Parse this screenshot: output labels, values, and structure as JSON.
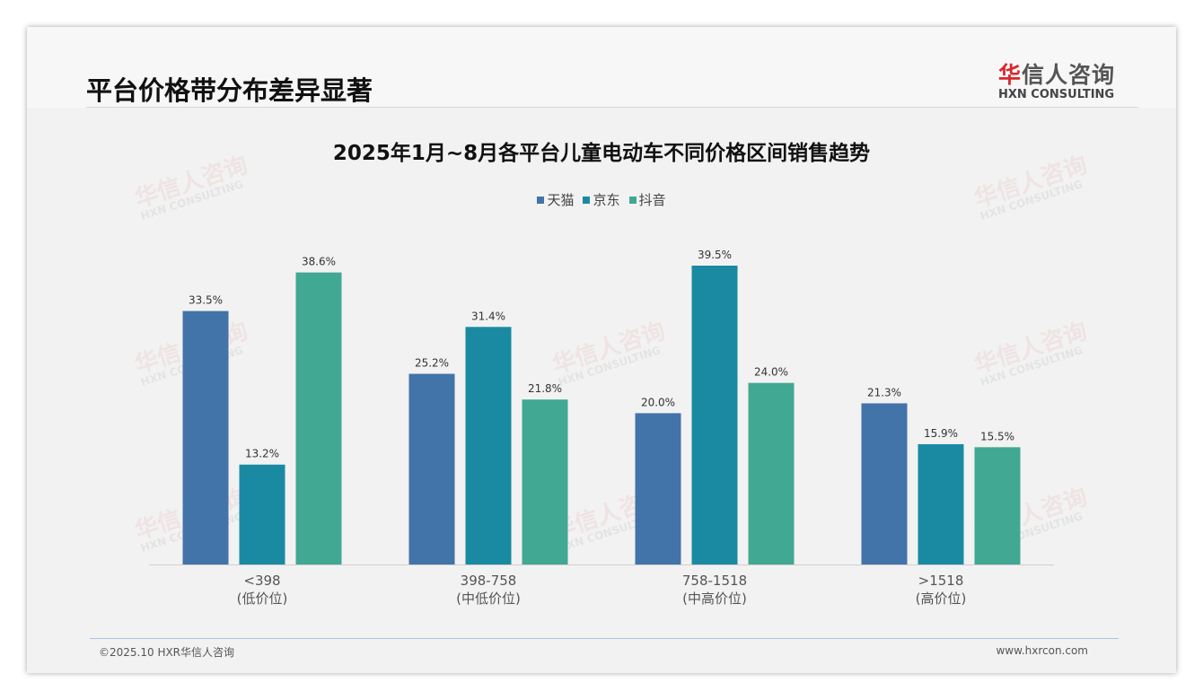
{
  "header": {
    "title": "平台价格带分布差异显著",
    "logo_cn_red": "华",
    "logo_cn_rest": "信人咨询",
    "logo_en": "HXN CONSULTING"
  },
  "watermark": {
    "cn": "华信人咨询",
    "en": "HXN CONSULTING"
  },
  "footer": {
    "copyright": "©2025.10 HXR华信人咨询",
    "url": "www.hxrcon.com"
  },
  "chart_data": {
    "type": "bar",
    "title": "2025年1月~8月各平台儿童电动车不同价格区间销售趋势",
    "categories": [
      [
        "<398",
        "(低价位)"
      ],
      [
        "398-758",
        "(中低价位)"
      ],
      [
        "758-1518",
        "(中高价位)"
      ],
      [
        ">1518",
        "(高价位)"
      ]
    ],
    "series": [
      {
        "name": "天猫",
        "color": "#4273a9",
        "values": [
          33.5,
          25.2,
          20.0,
          21.3
        ]
      },
      {
        "name": "京东",
        "color": "#1a8aa3",
        "values": [
          13.2,
          31.4,
          39.5,
          15.9
        ]
      },
      {
        "name": "抖音",
        "color": "#41a893",
        "values": [
          38.6,
          21.8,
          24.0,
          15.5
        ]
      }
    ],
    "unit": "%",
    "legend": "top-center",
    "grid": false,
    "ylim": [
      0,
      39.5
    ]
  }
}
